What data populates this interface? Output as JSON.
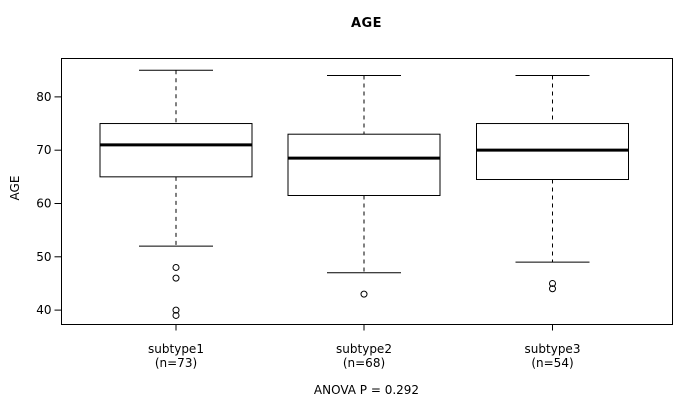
{
  "figure": {
    "title": "AGE",
    "y_axis_label": "AGE",
    "footer": "ANOVA P = 0.292"
  },
  "chart_data": {
    "type": "boxplot",
    "title": "AGE",
    "ylabel": "AGE",
    "xlabel": "",
    "ylim": [
      37.3,
      87.2
    ],
    "yticks": [
      40,
      50,
      60,
      70,
      80
    ],
    "grid": false,
    "legend": "none",
    "annotation": "ANOVA P = 0.292",
    "groups": [
      {
        "label": "subtype1",
        "sublabel": "(n=73)",
        "n": 73,
        "whisker_low": 52,
        "q1": 65,
        "median": 71,
        "q3": 75,
        "whisker_high": 85,
        "outliers": [
          48,
          46,
          40,
          39
        ]
      },
      {
        "label": "subtype2",
        "sublabel": "(n=68)",
        "n": 68,
        "whisker_low": 47,
        "q1": 61.5,
        "median": 68.5,
        "q3": 73,
        "whisker_high": 84,
        "outliers": [
          43
        ]
      },
      {
        "label": "subtype3",
        "sublabel": "(n=54)",
        "n": 54,
        "whisker_low": 49,
        "q1": 64.5,
        "median": 70,
        "q3": 75,
        "whisker_high": 84,
        "outliers": [
          45,
          44
        ]
      }
    ],
    "colors": {
      "line": "#000000",
      "box_fill": "#ffffff",
      "background": "#ffffff"
    }
  }
}
